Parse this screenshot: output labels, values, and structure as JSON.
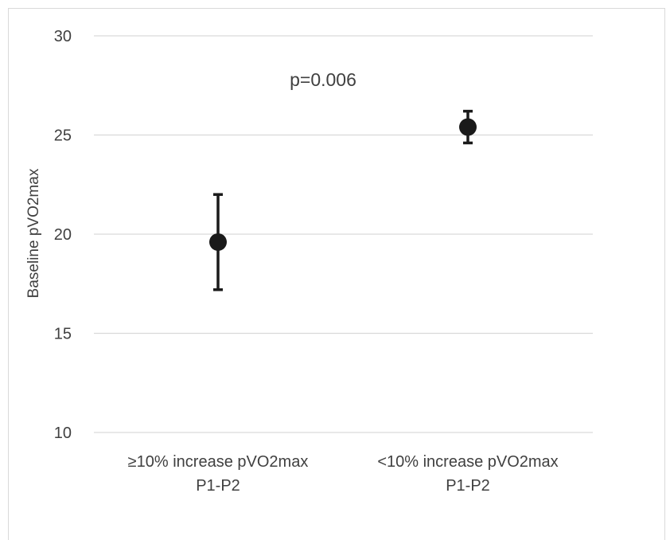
{
  "chart_data": {
    "type": "scatter",
    "title": "",
    "xlabel": "",
    "ylabel": "Baseline pVO2max",
    "ylim": [
      10,
      30
    ],
    "yticks": [
      10,
      15,
      20,
      25,
      30
    ],
    "grid": true,
    "categories": [
      [
        "≥10% increase pVO2max",
        "P1-P2"
      ],
      [
        "<10% increase pVO2max",
        "P1-P2"
      ]
    ],
    "points": [
      {
        "value": 19.6,
        "error_low": 17.2,
        "error_high": 22.0
      },
      {
        "value": 25.4,
        "error_low": 24.6,
        "error_high": 26.2
      }
    ],
    "annotation": "p=0.006",
    "colors": {
      "marker": "#1a1a1a",
      "grid": "#d9d9d9",
      "text": "#404040"
    }
  }
}
